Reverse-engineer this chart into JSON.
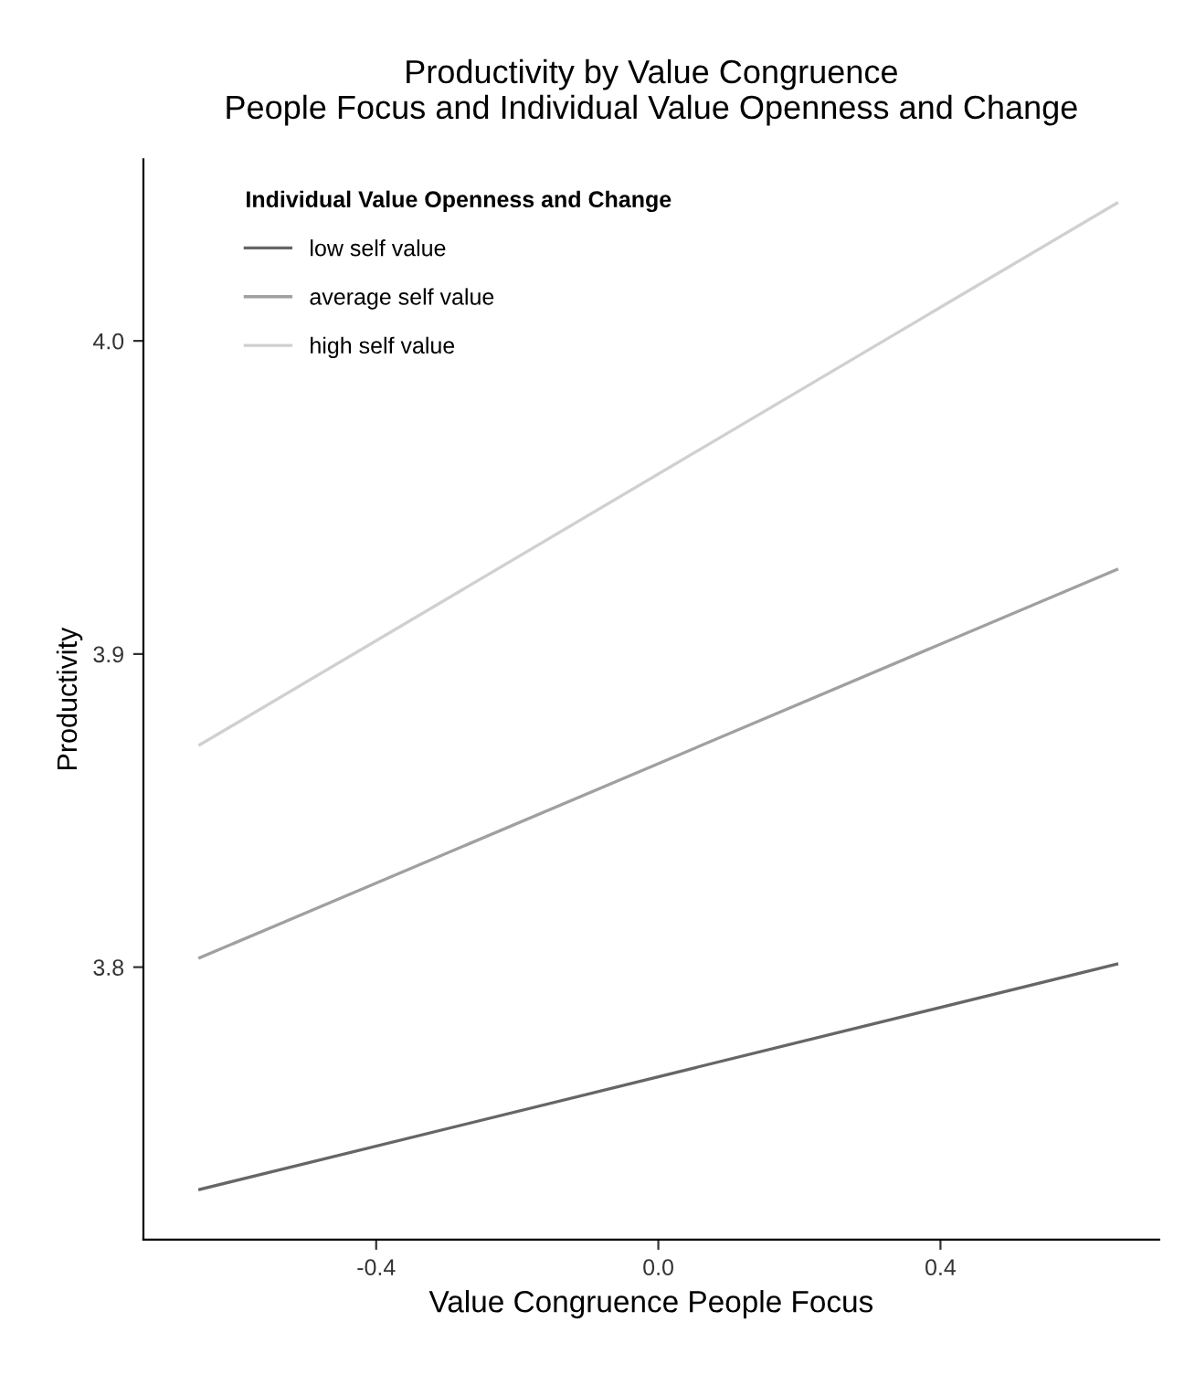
{
  "chart_data": {
    "type": "line",
    "title": "Productivity by Value Congruence\nPeople Focus and Individual Value Openness and Change",
    "xlabel": "Value Congruence People Focus",
    "ylabel": "Productivity",
    "legend_title": "Individual Value Openness and Change",
    "x": [
      -0.65,
      0.65
    ],
    "series": [
      {
        "name": "low self value",
        "color": "#666666",
        "values": [
          3.729,
          3.801
        ]
      },
      {
        "name": "average self value",
        "color": "#a0a0a0",
        "values": [
          3.803,
          3.927
        ]
      },
      {
        "name": "high self value",
        "color": "#d0d0d0",
        "values": [
          3.871,
          4.044
        ]
      }
    ],
    "xlim": [
      -0.73,
      0.71
    ],
    "ylim": [
      3.713,
      4.058
    ],
    "xticks": [
      {
        "value": -0.4,
        "label": "-0.4"
      },
      {
        "value": 0,
        "label": "0.0"
      },
      0.4
    ],
    "yticks": [
      3.8,
      3.9,
      {
        "value": 4,
        "label": "4.0"
      }
    ],
    "grid": false,
    "legend": "top left",
    "marker": "none",
    "line_style": "solid"
  }
}
